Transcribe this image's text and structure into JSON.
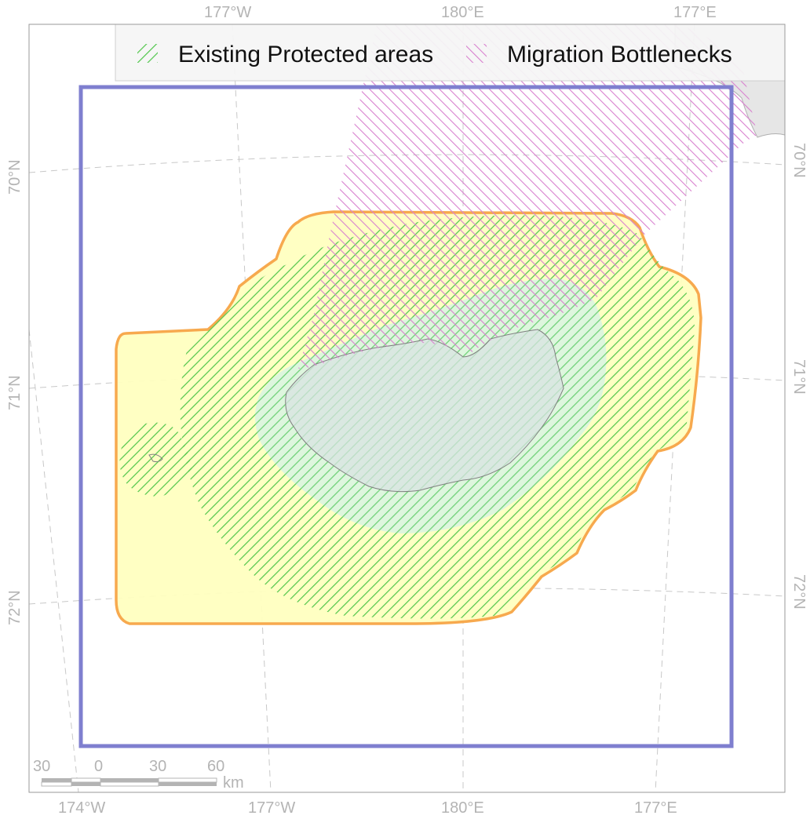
{
  "map": {
    "legend": {
      "protected_label": "Existing Protected areas",
      "protected_color": "#4fc64a",
      "bottleneck_label": "Migration Bottlenecks",
      "bottleneck_color": "#d880cf"
    },
    "graticule": {
      "top": [
        "177°W",
        "180°E",
        "177°E"
      ],
      "bottom": [
        "174°W",
        "177°W",
        "180°E",
        "177°E"
      ],
      "left": [
        "70°N",
        "71°N",
        "72°N"
      ],
      "right": [
        "70°N",
        "71°N",
        "72°N"
      ]
    },
    "scale_bar": {
      "ticks": [
        "30",
        "0",
        "30",
        "60"
      ],
      "unit": "km"
    },
    "colors": {
      "buffer_fill": "#ffffc0",
      "buffer_outline": "#f7a94e",
      "study_box": "#7f7fcf",
      "island": "#e0e0e0",
      "land": "#e6e6e6",
      "graticule": "#c8c8c8"
    }
  }
}
